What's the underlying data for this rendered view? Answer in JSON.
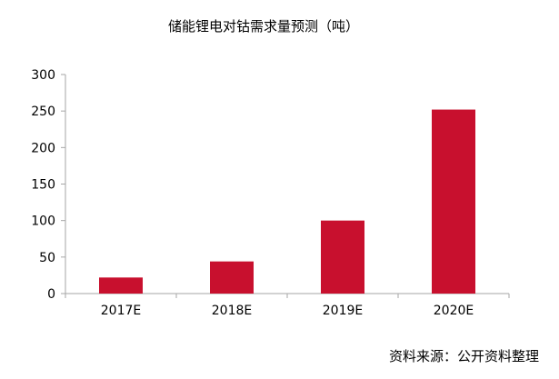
{
  "chart_data": {
    "type": "bar",
    "title": "储能锂电对钴需求量预测（吨）",
    "categories": [
      "2017E",
      "2018E",
      "2019E",
      "2020E"
    ],
    "values": [
      22,
      44,
      100,
      252
    ],
    "ylim": [
      0,
      300
    ],
    "yticks": [
      0,
      50,
      100,
      150,
      200,
      250,
      300
    ],
    "xlabel": "",
    "ylabel": "",
    "grid": false,
    "legend": "none",
    "bar_color": "#C8102E",
    "axis_color": "#A6A6A6"
  },
  "source_note": "资料来源：公开资料整理"
}
